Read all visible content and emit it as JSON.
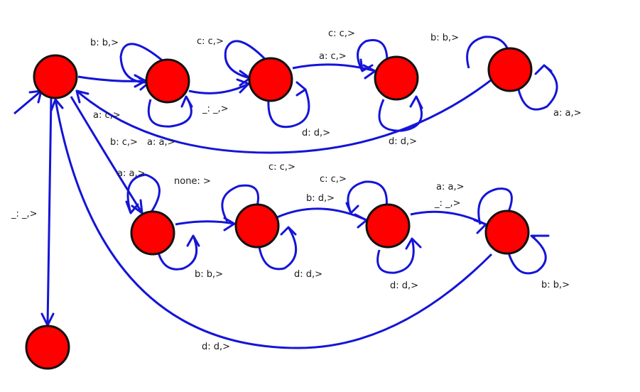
{
  "diagram": {
    "edge_color": "#1414d8",
    "state_fill": "#ff0000",
    "state_stroke": "#111111",
    "labels": {
      "t1_loop_b": "b: b,>",
      "t2_loop_c": "c: c,>",
      "t3_loop_c": "c: c,>",
      "t3_to_t4": "a: c,>",
      "t4_loop_b": "b: b,>",
      "start_to_t1": "a: c,>",
      "t1_loop_a": "a: a,>",
      "t1_to_t2": "_: _,>",
      "t2_loop_d": "d: d,>",
      "t3_loop_d": "d: d,>",
      "t4_loop_a": "a: a,>",
      "start_to_b1": "b: c,>",
      "t4_to_start": "c: c,>",
      "b1_loop_a": "a: a,>",
      "b1_to_b2": "none: >",
      "b2_loop_c": "c: c,>",
      "b2_to_b3": "b: d,>",
      "b3_loop_a": "a: a,>",
      "b3_to_b4": "_: _,>",
      "start_to_halt": "_: _,>",
      "b1_loop_b": "b: b,>",
      "b2_loop_d": "d: d,>",
      "b3_loop_d": "d: d,>",
      "b4_loop_b": "b: b,>",
      "b4_to_start": "d: d,>"
    }
  }
}
